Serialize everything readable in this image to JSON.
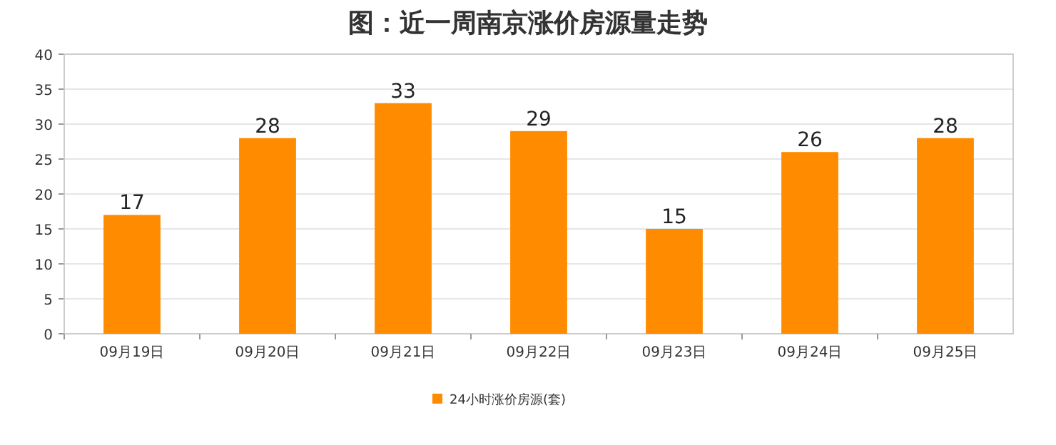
{
  "chart_data": {
    "type": "bar",
    "title": "图：近一周南京涨价房源量走势",
    "categories": [
      "09月19日",
      "09月20日",
      "09月21日",
      "09月22日",
      "09月23日",
      "09月24日",
      "09月25日"
    ],
    "series": [
      {
        "name": "24小时涨价房源(套)",
        "color": "#ff8c00",
        "values": [
          17,
          28,
          33,
          29,
          15,
          26,
          28
        ]
      }
    ],
    "ylim": [
      0,
      40
    ],
    "yticks": [
      0,
      5,
      10,
      15,
      20,
      25,
      30,
      35,
      40
    ],
    "grid": "y",
    "legend": "bottom",
    "data_labels": true
  }
}
